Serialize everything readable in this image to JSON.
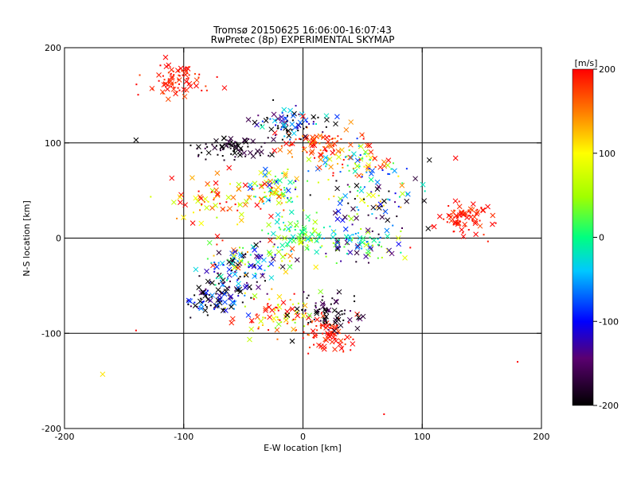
{
  "chart_data": {
    "type": "scatter",
    "title": "Tromsø 20150625 16:06:00-16:07:43",
    "subtitle": "RwPretec (8p) EXPERIMENTAL SKYMAP",
    "xlabel": "E-W location [km]",
    "ylabel": "N-S location [km]",
    "xlim": [
      -200,
      200
    ],
    "ylim": [
      -200,
      200
    ],
    "xticks": [
      "-200",
      "-100",
      "0",
      "100",
      "200"
    ],
    "yticks": [
      "-200",
      "-100",
      "0",
      "100",
      "200"
    ],
    "grid_lines": [
      -100,
      0,
      100
    ],
    "colorbar": {
      "label": "[m/s]",
      "range": [
        -200,
        200
      ],
      "ticks": [
        "200",
        "100",
        "0",
        "-100",
        "-200"
      ]
    },
    "markers": [
      "x",
      "dot"
    ],
    "clusters": [
      {
        "center": [
          -25,
          50
        ],
        "spread": [
          12,
          10
        ],
        "value": 30,
        "vspread": 150
      },
      {
        "center": [
          0,
          5
        ],
        "spread": [
          15,
          12
        ],
        "value": 20,
        "vspread": 60
      },
      {
        "center": [
          10,
          100
        ],
        "spread": [
          20,
          8
        ],
        "value": 180,
        "vspread": 40
      },
      {
        "center": [
          45,
          80
        ],
        "spread": [
          20,
          10
        ],
        "value": 60,
        "vspread": 160
      },
      {
        "center": [
          -60,
          95
        ],
        "spread": [
          15,
          6
        ],
        "value": -190,
        "vspread": 30
      },
      {
        "center": [
          20,
          -100
        ],
        "spread": [
          10,
          10
        ],
        "value": 190,
        "vspread": 20
      },
      {
        "center": [
          -20,
          -80
        ],
        "spread": [
          15,
          12
        ],
        "value": 150,
        "vspread": 120
      },
      {
        "center": [
          -75,
          -65
        ],
        "spread": [
          12,
          8
        ],
        "value": -150,
        "vspread": 100
      },
      {
        "center": [
          -55,
          -40
        ],
        "spread": [
          15,
          10
        ],
        "value": -120,
        "vspread": 120
      },
      {
        "center": [
          20,
          -80
        ],
        "spread": [
          15,
          10
        ],
        "value": -180,
        "vspread": 40
      },
      {
        "center": [
          -40,
          -20
        ],
        "spread": [
          20,
          10
        ],
        "value": 0,
        "vspread": 200
      },
      {
        "center": [
          50,
          -5
        ],
        "spread": [
          15,
          10
        ],
        "value": -60,
        "vspread": 150
      },
      {
        "center": [
          -105,
          165
        ],
        "spread": [
          15,
          10
        ],
        "value": 190,
        "vspread": 20
      },
      {
        "center": [
          135,
          20
        ],
        "spread": [
          10,
          8
        ],
        "value": 190,
        "vspread": 20
      },
      {
        "center": [
          -60,
          40
        ],
        "spread": [
          25,
          12
        ],
        "value": 150,
        "vspread": 100
      },
      {
        "center": [
          60,
          40
        ],
        "spread": [
          20,
          12
        ],
        "value": -50,
        "vspread": 200
      },
      {
        "center": [
          -10,
          120
        ],
        "spread": [
          15,
          8
        ],
        "value": -150,
        "vspread": 150
      }
    ],
    "isolated_points": [
      {
        "x": -168,
        "y": -143,
        "v": 110,
        "m": "x"
      },
      {
        "x": -140,
        "y": -97,
        "v": 200,
        "m": "dot"
      },
      {
        "x": -140,
        "y": 103,
        "v": -200,
        "m": "x"
      },
      {
        "x": -110,
        "y": 63,
        "v": 200,
        "m": "x"
      },
      {
        "x": 68,
        "y": -185,
        "v": 200,
        "m": "dot"
      },
      {
        "x": 180,
        "y": -130,
        "v": 200,
        "m": "dot"
      },
      {
        "x": 106,
        "y": 82,
        "v": -200,
        "m": "x"
      },
      {
        "x": 128,
        "y": 84,
        "v": 200,
        "m": "x"
      },
      {
        "x": 105,
        "y": 10,
        "v": -200,
        "m": "x"
      },
      {
        "x": 110,
        "y": 12,
        "v": 200,
        "m": "x"
      },
      {
        "x": 155,
        "y": 33,
        "v": 200,
        "m": "x"
      },
      {
        "x": 145,
        "y": 4,
        "v": 200,
        "m": "x"
      },
      {
        "x": 0,
        "y": 128,
        "v": 200,
        "m": "x"
      },
      {
        "x": -25,
        "y": 145,
        "v": -200,
        "m": "dot"
      },
      {
        "x": -85,
        "y": 155,
        "v": 200,
        "m": "dot"
      },
      {
        "x": 68,
        "y": 80,
        "v": 150,
        "m": "x"
      },
      {
        "x": 90,
        "y": -10,
        "v": 200,
        "m": "dot"
      }
    ]
  }
}
